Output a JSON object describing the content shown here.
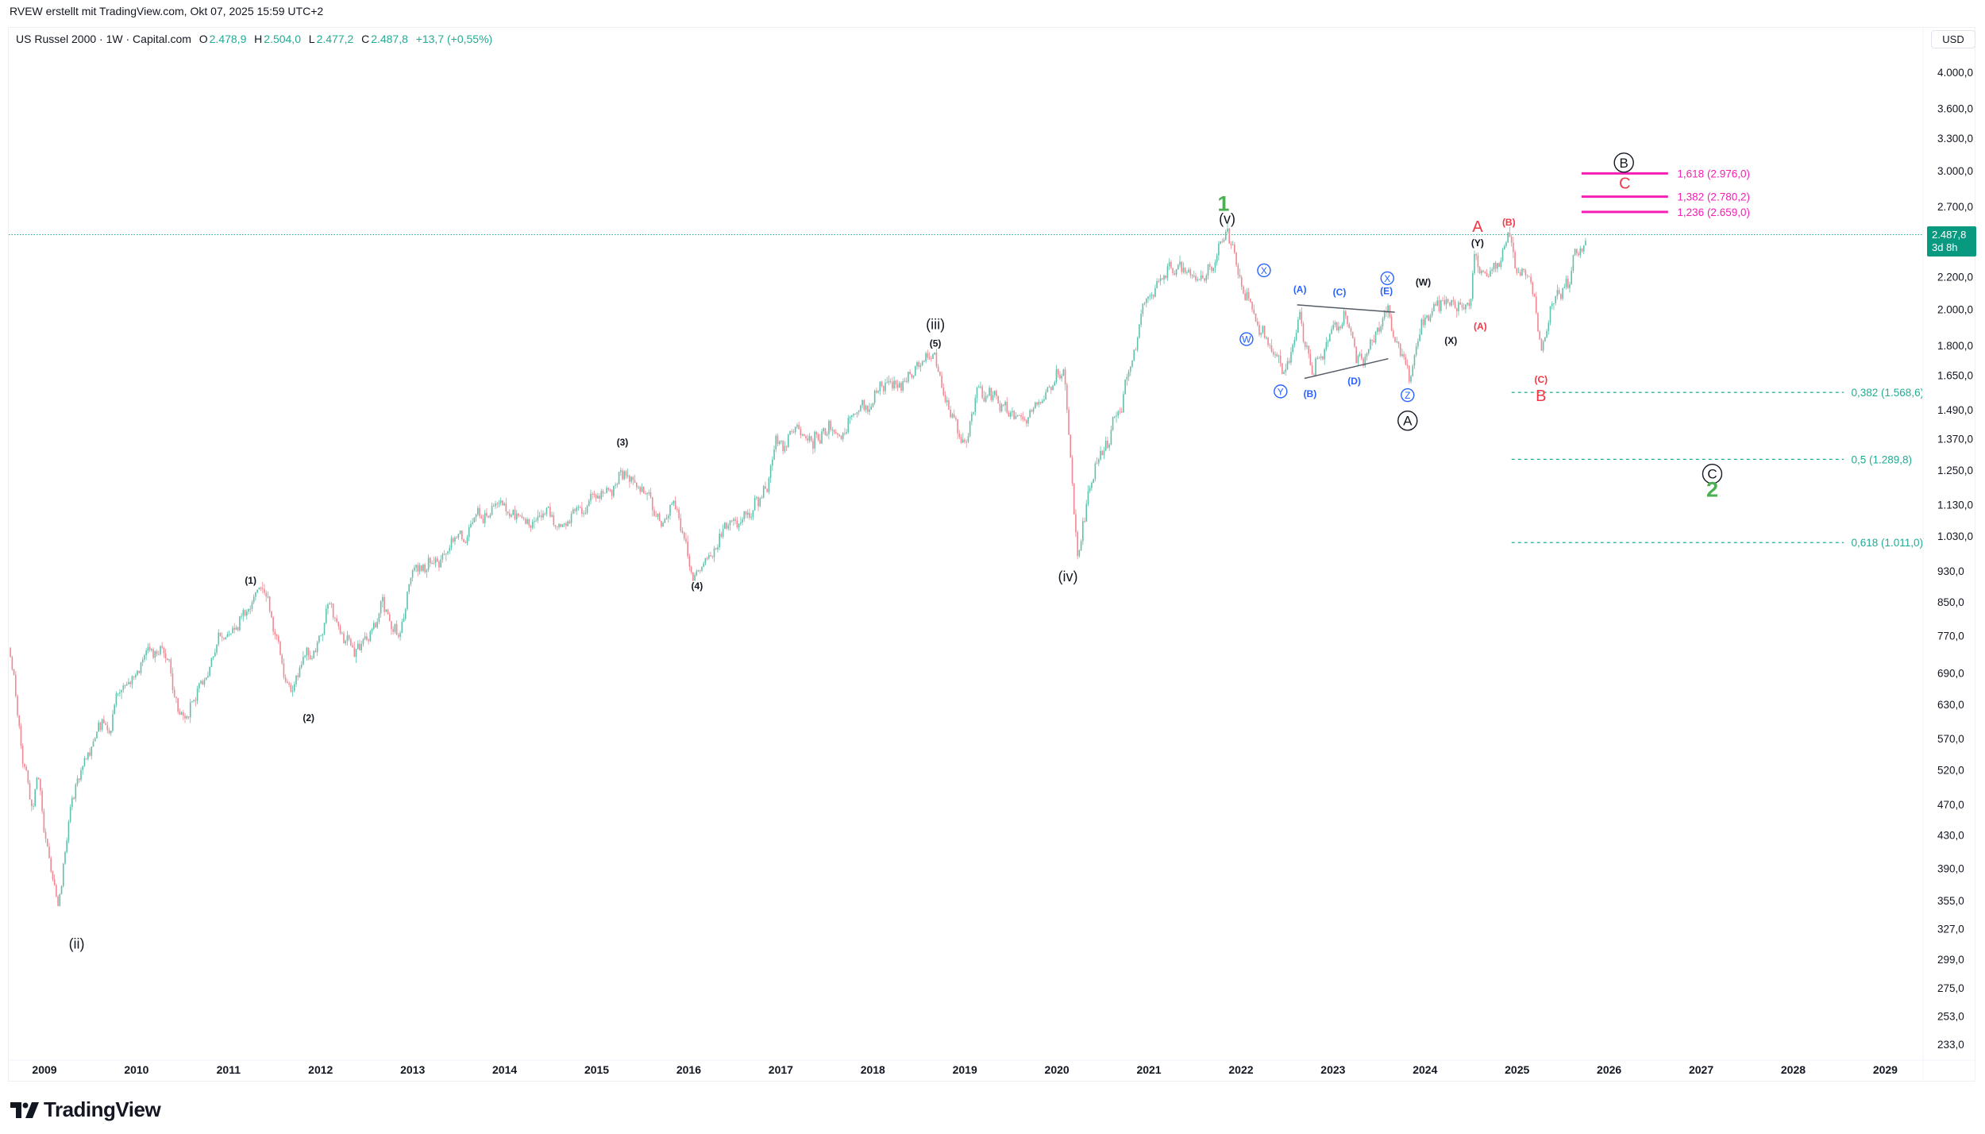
{
  "credit": "RVEW erstellt mit TradingView.com, Okt 07, 2025 15:59 UTC+2",
  "legend": {
    "symbol": "US Russel 2000 · 1W · Capital.com",
    "open_label": "O",
    "open": "2.478,9",
    "high_label": "H",
    "high": "2.504,0",
    "low_label": "L",
    "low": "2.477,2",
    "close_label": "C",
    "close": "2.487,8",
    "change": "+13,7 (+0,55%)"
  },
  "currency": "USD",
  "last_price": {
    "value": "2.487,8",
    "countdown": "3d 8h"
  },
  "brand": "TradingView",
  "colors": {
    "up": "#5fc1ac",
    "down": "#f08892",
    "blue": "#2962ff",
    "red": "#f23645",
    "green": "#4caf50",
    "pink": "#f51fb5",
    "teal": "#22ab94",
    "badge": "#089981"
  },
  "chart_data": {
    "type": "candlestick",
    "scale": "log",
    "timeframe": "1W",
    "ylim": [
      220,
      4200
    ],
    "xlim": [
      2008.63,
      2029.4
    ],
    "last_price": 2487.8,
    "price_ticks": [
      4000,
      3600,
      3300,
      3000,
      2700,
      2200,
      2000,
      1800,
      1650,
      1490,
      1370,
      1250,
      1130,
      1030,
      930,
      850,
      770,
      690,
      630,
      570,
      520,
      470,
      430,
      390,
      355,
      327,
      299,
      275,
      253,
      233
    ],
    "price_tick_labels": [
      "4.000,0",
      "3.600,0",
      "3.300,0",
      "3.000,0",
      "2.700,0",
      "2.200,0",
      "2.000,0",
      "1.800,0",
      "1.650,0",
      "1.490,0",
      "1.370,0",
      "1.250,0",
      "1.130,0",
      "1.030,0",
      "930,0",
      "850,0",
      "770,0",
      "690,0",
      "630,0",
      "570,0",
      "520,0",
      "470,0",
      "430,0",
      "390,0",
      "355,0",
      "327,0",
      "299,0",
      "275,0",
      "253,0",
      "233,0"
    ],
    "x_ticks": [
      "2009",
      "2010",
      "2011",
      "2012",
      "2013",
      "2014",
      "2015",
      "2016",
      "2017",
      "2018",
      "2019",
      "2020",
      "2021",
      "2022",
      "2023",
      "2024",
      "2025",
      "2026",
      "2027",
      "2028",
      "2029"
    ],
    "price_path": [
      [
        2008.63,
        743
      ],
      [
        2008.77,
        531
      ],
      [
        2008.86,
        470
      ],
      [
        2008.93,
        510
      ],
      [
        2009.15,
        343
      ],
      [
        2009.28,
        475
      ],
      [
        2009.55,
        570
      ],
      [
        2009.83,
        640
      ],
      [
        2010.28,
        750
      ],
      [
        2010.5,
        590
      ],
      [
        2010.93,
        780
      ],
      [
        2011.34,
        860
      ],
      [
        2011.45,
        830
      ],
      [
        2011.69,
        640
      ],
      [
        2011.83,
        710
      ],
      [
        2012.1,
        820
      ],
      [
        2012.38,
        750
      ],
      [
        2012.65,
        840
      ],
      [
        2012.86,
        780
      ],
      [
        2013.0,
        920
      ],
      [
        2013.55,
        1040
      ],
      [
        2013.96,
        1150
      ],
      [
        2014.1,
        1080
      ],
      [
        2014.38,
        1120
      ],
      [
        2014.59,
        1060
      ],
      [
        2015.28,
        1230
      ],
      [
        2015.48,
        1190
      ],
      [
        2015.69,
        1080
      ],
      [
        2015.83,
        1130
      ],
      [
        2016.08,
        920
      ],
      [
        2016.45,
        1090
      ],
      [
        2016.8,
        1120
      ],
      [
        2016.94,
        1340
      ],
      [
        2017.35,
        1380
      ],
      [
        2017.63,
        1420
      ],
      [
        2018.04,
        1560
      ],
      [
        2018.32,
        1620
      ],
      [
        2018.66,
        1740
      ],
      [
        2018.8,
        1520
      ],
      [
        2018.98,
        1330
      ],
      [
        2019.15,
        1560
      ],
      [
        2019.56,
        1500
      ],
      [
        2019.77,
        1500
      ],
      [
        2020.08,
        1690
      ],
      [
        2020.22,
        950
      ],
      [
        2020.29,
        1100
      ],
      [
        2020.43,
        1300
      ],
      [
        2020.7,
        1500
      ],
      [
        2020.91,
        1900
      ],
      [
        2021.15,
        2300
      ],
      [
        2021.5,
        2220
      ],
      [
        2021.85,
        2430
      ],
      [
        2022.13,
        1980
      ],
      [
        2022.48,
        1650
      ],
      [
        2022.64,
        1980
      ],
      [
        2022.78,
        1680
      ],
      [
        2023.12,
        1960
      ],
      [
        2023.26,
        1700
      ],
      [
        2023.6,
        1960
      ],
      [
        2023.83,
        1650
      ],
      [
        2024.0,
        2000
      ],
      [
        2024.28,
        2040
      ],
      [
        2024.48,
        2000
      ],
      [
        2024.54,
        2280
      ],
      [
        2024.7,
        2150
      ],
      [
        2024.9,
        2450
      ],
      [
        2025.04,
        2240
      ],
      [
        2025.18,
        2080
      ],
      [
        2025.27,
        1740
      ],
      [
        2025.36,
        1990
      ],
      [
        2025.54,
        2170
      ],
      [
        2025.76,
        2488
      ]
    ],
    "annotations": [
      {
        "text": "(ii)",
        "t": 2009.35,
        "price": 313,
        "color": "black",
        "size": "lg"
      },
      {
        "text": "(1)",
        "t": 2011.24,
        "price": 905,
        "color": "black",
        "size": "sm"
      },
      {
        "text": "(2)",
        "t": 2011.87,
        "price": 606,
        "color": "black",
        "size": "sm"
      },
      {
        "text": "(3)",
        "t": 2015.28,
        "price": 1357,
        "color": "black",
        "size": "sm"
      },
      {
        "text": "(4)",
        "t": 2016.09,
        "price": 891,
        "color": "black",
        "size": "sm"
      },
      {
        "text": "(iii)",
        "t": 2018.68,
        "price": 1916,
        "color": "black",
        "size": "lg"
      },
      {
        "text": "(5)",
        "t": 2018.68,
        "price": 1812,
        "color": "black",
        "size": "sm"
      },
      {
        "text": "(iv)",
        "t": 2020.12,
        "price": 916,
        "color": "black",
        "size": "lg"
      },
      {
        "text": "1",
        "t": 2021.81,
        "price": 2727,
        "color": "green",
        "size": "xl"
      },
      {
        "text": "(v)",
        "t": 2021.85,
        "price": 2610,
        "color": "black",
        "size": "lg"
      },
      {
        "text": "X",
        "t": 2022.25,
        "price": 2241,
        "color": "blue",
        "size": "sm",
        "circled": true
      },
      {
        "text": "W",
        "t": 2022.06,
        "price": 1833,
        "color": "blue",
        "size": "sm",
        "circled": true
      },
      {
        "text": "Y",
        "t": 2022.43,
        "price": 1573,
        "color": "blue",
        "size": "sm",
        "circled": true
      },
      {
        "text": "(A)",
        "t": 2022.64,
        "price": 2120,
        "color": "blue",
        "size": "sm"
      },
      {
        "text": "(B)",
        "t": 2022.75,
        "price": 1562,
        "color": "blue",
        "size": "sm"
      },
      {
        "text": "(C)",
        "t": 2023.07,
        "price": 2103,
        "color": "blue",
        "size": "sm"
      },
      {
        "text": "(D)",
        "t": 2023.23,
        "price": 1622,
        "color": "blue",
        "size": "sm"
      },
      {
        "text": "(E)",
        "t": 2023.58,
        "price": 2111,
        "color": "blue",
        "size": "sm"
      },
      {
        "text": "X",
        "t": 2023.59,
        "price": 2190,
        "color": "blue",
        "size": "sm",
        "circled": true
      },
      {
        "text": "Z",
        "t": 2023.81,
        "price": 1556,
        "color": "blue",
        "size": "sm",
        "circled": true
      },
      {
        "text": "A",
        "t": 2023.81,
        "price": 1444,
        "color": "black",
        "size": "lg",
        "circled": true
      },
      {
        "text": "(W)",
        "t": 2023.98,
        "price": 2166,
        "color": "black",
        "size": "sm"
      },
      {
        "text": "(X)",
        "t": 2024.28,
        "price": 1826,
        "color": "black",
        "size": "sm"
      },
      {
        "text": "(Y)",
        "t": 2024.57,
        "price": 2430,
        "color": "black",
        "size": "sm"
      },
      {
        "text": "A",
        "t": 2024.57,
        "price": 2549,
        "color": "red",
        "size": "md"
      },
      {
        "text": "(A)",
        "t": 2024.6,
        "price": 1903,
        "color": "red",
        "size": "sm"
      },
      {
        "text": "(B)",
        "t": 2024.91,
        "price": 2580,
        "color": "red",
        "size": "sm"
      },
      {
        "text": "(C)",
        "t": 2025.26,
        "price": 1629,
        "color": "red",
        "size": "sm"
      },
      {
        "text": "B",
        "t": 2025.26,
        "price": 1556,
        "color": "red",
        "size": "md"
      },
      {
        "text": "B",
        "t": 2026.16,
        "price": 3071,
        "color": "black",
        "size": "lg",
        "circled": true
      },
      {
        "text": "C",
        "t": 2026.17,
        "price": 2895,
        "color": "red",
        "size": "md"
      },
      {
        "text": "C",
        "t": 2027.12,
        "price": 1236,
        "color": "black",
        "size": "lg",
        "circled": true
      },
      {
        "text": "2",
        "t": 2027.12,
        "price": 1182,
        "color": "green",
        "size": "xl"
      }
    ],
    "trendlines": [
      {
        "from": [
          2022.61,
          2026
        ],
        "to": [
          2023.67,
          1983
        ]
      },
      {
        "from": [
          2022.69,
          1634
        ],
        "to": [
          2023.6,
          1731
        ]
      }
    ],
    "fib_extension": [
      {
        "ratio": "1,618",
        "price": 2976.0,
        "label": "1,618 (2.976,0)"
      },
      {
        "ratio": "1,382",
        "price": 2780.2,
        "label": "1,382 (2.780,2)"
      },
      {
        "ratio": "1,236",
        "price": 2659.0,
        "label": "1,236 (2.659,0)"
      }
    ],
    "fib_retracement": [
      {
        "ratio": "0,382",
        "price": 1568.6,
        "label": "0,382 (1.568,6)"
      },
      {
        "ratio": "0,5",
        "price": 1289.8,
        "label": "0,5 (1.289,8)"
      },
      {
        "ratio": "0,618",
        "price": 1011.0,
        "label": "0,618 (1.011,0)"
      }
    ]
  }
}
